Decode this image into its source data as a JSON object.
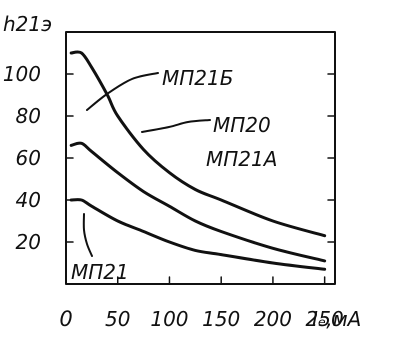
{
  "chart_data": {
    "type": "line",
    "xlim": [
      0,
      260
    ],
    "ylim": [
      0,
      120
    ],
    "grid": false,
    "xlabel": "Iₑ,мA",
    "ylabel": "h21э",
    "xticks": [
      {
        "value": 0,
        "label": "0"
      },
      {
        "value": 50,
        "label": "50"
      },
      {
        "value": 100,
        "label": "100"
      },
      {
        "value": 150,
        "label": "150"
      },
      {
        "value": 200,
        "label": "200"
      },
      {
        "value": 250,
        "label": "250"
      }
    ],
    "yticks": [
      {
        "value": 20,
        "label": "20"
      },
      {
        "value": 40,
        "label": "40"
      },
      {
        "value": 60,
        "label": "60"
      },
      {
        "value": 80,
        "label": "80"
      },
      {
        "value": 100,
        "label": "100"
      }
    ],
    "series": [
      {
        "name": "МП21Б",
        "x": [
          5,
          15,
          25,
          40,
          50,
          75,
          100,
          125,
          150,
          200,
          250
        ],
        "y": [
          110,
          110,
          103,
          90,
          80,
          64,
          53,
          45,
          40,
          30,
          23
        ]
      },
      {
        "name": "МП20 МП21А",
        "x": [
          5,
          15,
          25,
          50,
          75,
          100,
          125,
          150,
          200,
          250
        ],
        "y": [
          66,
          67,
          63,
          53,
          44,
          37,
          30,
          25,
          17,
          11
        ]
      },
      {
        "name": "МП21",
        "x": [
          5,
          15,
          25,
          50,
          75,
          100,
          125,
          150,
          200,
          250
        ],
        "y": [
          40,
          40,
          37,
          30,
          25,
          20,
          16,
          14,
          10,
          7
        ]
      }
    ],
    "annotations": [
      {
        "text": "МП21Б",
        "series": 0
      },
      {
        "text": "МП20",
        "series": 1
      },
      {
        "text": "МП21А",
        "series": 1
      },
      {
        "text": "МП21",
        "series": 2
      }
    ]
  }
}
